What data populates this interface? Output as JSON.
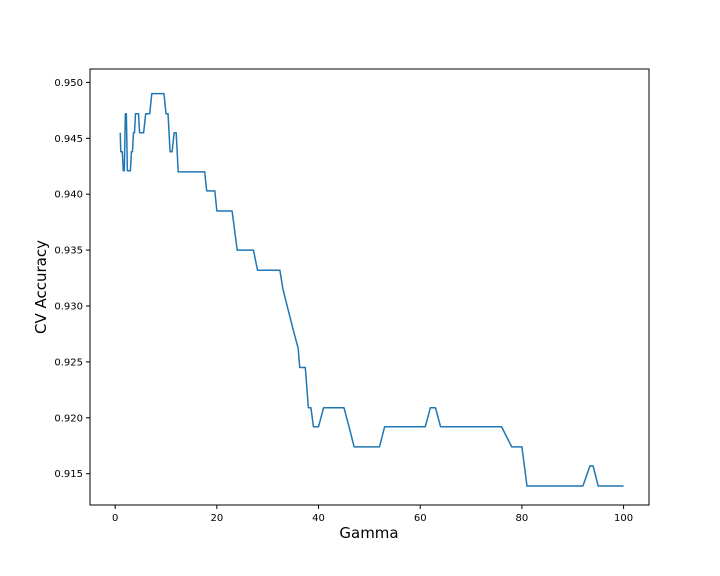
{
  "chart_data": {
    "type": "line",
    "title": "",
    "xlabel": "Gamma",
    "ylabel": "CV Accuracy",
    "xlim": [
      -4.95,
      105
    ],
    "ylim": [
      0.9122,
      0.9512
    ],
    "grid": false,
    "legend": "none",
    "xticks": [
      0,
      20,
      40,
      60,
      80,
      100
    ],
    "xtick_labels": [
      "0",
      "20",
      "40",
      "60",
      "80",
      "100"
    ],
    "yticks": [
      0.915,
      0.92,
      0.925,
      0.93,
      0.935,
      0.94,
      0.945,
      0.95
    ],
    "ytick_labels": [
      "0.915",
      "0.920",
      "0.925",
      "0.930",
      "0.935",
      "0.940",
      "0.945",
      "0.950"
    ],
    "series": [
      {
        "color": "#1f77b4",
        "x": [
          1.0,
          1.1,
          1.2,
          1.4,
          1.6,
          1.8,
          2.0,
          2.2,
          2.4,
          2.6,
          2.8,
          3.0,
          3.2,
          3.4,
          3.6,
          3.8,
          4.0,
          4.2,
          4.4,
          4.6,
          4.8,
          5.0,
          5.2,
          5.6,
          6.0,
          6.4,
          6.8,
          7.2,
          7.6,
          8.0,
          8.4,
          8.8,
          9.2,
          9.6,
          10.0,
          10.4,
          10.8,
          11.2,
          11.6,
          12.0,
          12.4,
          13.0,
          14.0,
          15.0,
          16.0,
          17.0,
          17.6,
          18.0,
          19.0,
          19.6,
          20.0,
          21.0,
          22.0,
          22.6,
          23.0,
          24.0,
          25.0,
          26.0,
          27.0,
          27.2,
          28.0,
          30.0,
          32.0,
          32.4,
          33.0,
          34.0,
          35.0,
          36.0,
          36.3,
          37.0,
          37.4,
          38.0,
          38.5,
          39.0,
          39.6,
          40.0,
          41.0,
          42.0,
          43.0,
          44.0,
          45.0,
          46.0,
          47.0,
          48.0,
          50.0,
          52.0,
          53.0,
          55.0,
          57.0,
          59.0,
          61.0,
          62.0,
          63.0,
          64.0,
          65.0,
          67.0,
          70.0,
          73.0,
          75.0,
          76.0,
          78.0,
          79.0,
          80.0,
          81.0,
          83.0,
          86.0,
          89.0,
          91.0,
          92.0,
          93.4,
          94.0,
          95.0,
          96.0,
          98.0,
          100.0
        ],
        "y": [
          0.9455,
          0.9438,
          0.9438,
          0.9438,
          0.9421,
          0.9421,
          0.9472,
          0.9472,
          0.9421,
          0.9421,
          0.9421,
          0.9421,
          0.9438,
          0.9438,
          0.9455,
          0.9455,
          0.9472,
          0.9472,
          0.9472,
          0.9472,
          0.9455,
          0.9455,
          0.9455,
          0.9455,
          0.9472,
          0.9472,
          0.9472,
          0.949,
          0.949,
          0.949,
          0.949,
          0.949,
          0.949,
          0.949,
          0.9472,
          0.9472,
          0.9438,
          0.9438,
          0.9455,
          0.9455,
          0.942,
          0.942,
          0.942,
          0.942,
          0.942,
          0.942,
          0.942,
          0.9403,
          0.9403,
          0.9403,
          0.9385,
          0.9385,
          0.9385,
          0.9385,
          0.9385,
          0.935,
          0.935,
          0.935,
          0.935,
          0.935,
          0.9332,
          0.9332,
          0.9332,
          0.9332,
          0.9315,
          0.9297,
          0.9279,
          0.9262,
          0.9245,
          0.9245,
          0.9245,
          0.9209,
          0.9209,
          0.9192,
          0.9192,
          0.9192,
          0.9209,
          0.9209,
          0.9209,
          0.9209,
          0.9209,
          0.9192,
          0.9174,
          0.9174,
          0.9174,
          0.9174,
          0.9192,
          0.9192,
          0.9192,
          0.9192,
          0.9192,
          0.9209,
          0.9209,
          0.9192,
          0.9192,
          0.9192,
          0.9192,
          0.9192,
          0.9192,
          0.9192,
          0.9174,
          0.9174,
          0.9174,
          0.9139,
          0.9139,
          0.9139,
          0.9139,
          0.9139,
          0.9139,
          0.9157,
          0.9157,
          0.9139,
          0.9139,
          0.9139,
          0.9139
        ]
      }
    ]
  }
}
